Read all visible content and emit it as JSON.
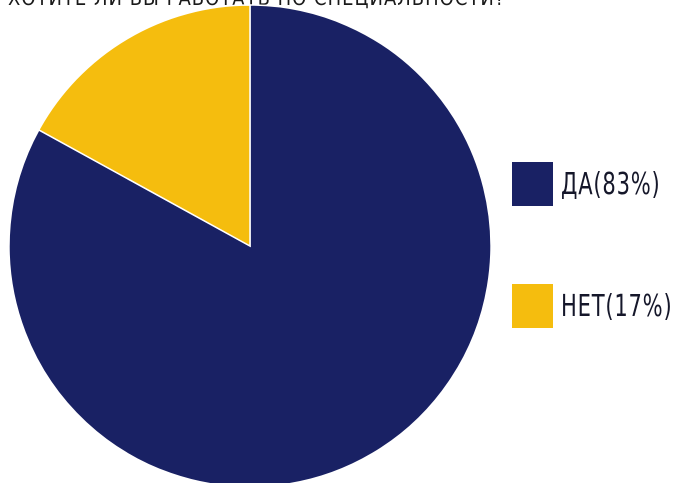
{
  "chart_data": {
    "type": "pie",
    "title": "ХОТИТЕ ЛИ ВЫ РАБОТАТЬ ПО СПЕЦИАЛЬНОСТИ?",
    "slices": [
      {
        "label": "ДА(83%)",
        "value": 83,
        "color": "#192164"
      },
      {
        "label": "НЕТ(17%)",
        "value": 17,
        "color": "#f5bd0e"
      }
    ],
    "legend_position": "right"
  }
}
